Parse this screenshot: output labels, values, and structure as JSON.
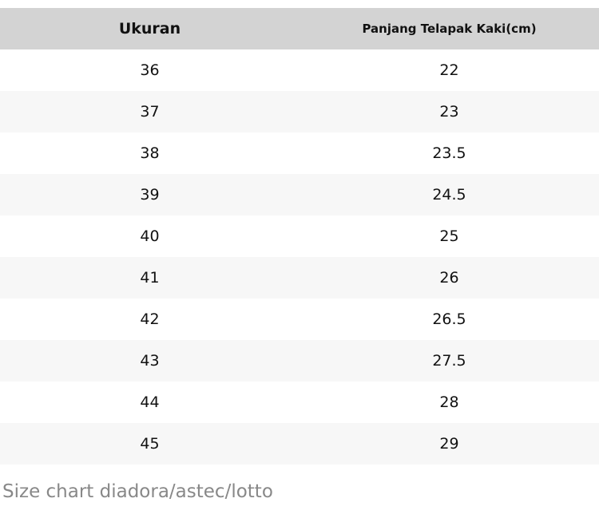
{
  "chart_data": {
    "type": "table",
    "columns": [
      "Ukuran",
      "Panjang Telapak Kaki(cm)"
    ],
    "rows": [
      [
        "36",
        "22"
      ],
      [
        "37",
        "23"
      ],
      [
        "38",
        "23.5"
      ],
      [
        "39",
        "24.5"
      ],
      [
        "40",
        "25"
      ],
      [
        "41",
        "26"
      ],
      [
        "42",
        "26.5"
      ],
      [
        "43",
        "27.5"
      ],
      [
        "44",
        "28"
      ],
      [
        "45",
        "29"
      ]
    ],
    "caption": "Size chart diadora/astec/lotto"
  },
  "colors": {
    "header_bg": "#d3d3d3",
    "row_alt_bg": "#f7f7f7",
    "text": "#111111",
    "caption_text": "#888888"
  }
}
